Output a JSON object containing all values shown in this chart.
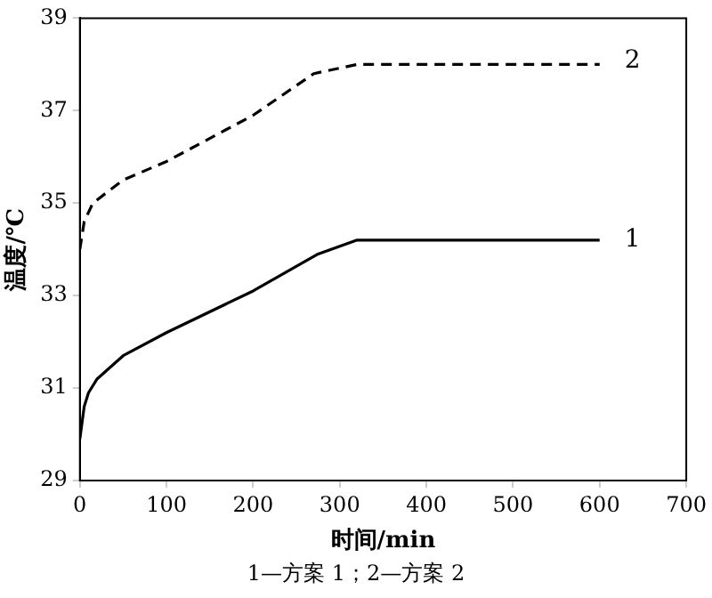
{
  "chart_data": {
    "type": "line",
    "xlabel": "时间/min",
    "ylabel": "温度/℃",
    "xlim": [
      0,
      700
    ],
    "xticks": [
      0,
      100,
      200,
      300,
      400,
      500,
      600,
      700
    ],
    "ylim": [
      29,
      39
    ],
    "yticks": [
      29,
      31,
      33,
      35,
      37,
      39
    ],
    "grid": false,
    "legend": false,
    "marker": "none",
    "annotations": [
      "1—方案 1；2—方案 2"
    ],
    "series": [
      {
        "name": "1",
        "color": "#000000",
        "line_style": "solid",
        "x": [
          0,
          5,
          10,
          20,
          50,
          100,
          200,
          275,
          320,
          600
        ],
        "values": [
          29.9,
          30.6,
          30.9,
          31.2,
          31.7,
          32.2,
          33.1,
          33.9,
          34.2,
          34.2
        ]
      },
      {
        "name": "2",
        "color": "#000000",
        "line_style": "dashed",
        "x": [
          0,
          5,
          15,
          50,
          100,
          200,
          270,
          320,
          600
        ],
        "values": [
          34.0,
          34.6,
          35.0,
          35.5,
          35.9,
          36.9,
          37.8,
          38.0,
          38.0
        ]
      }
    ]
  }
}
